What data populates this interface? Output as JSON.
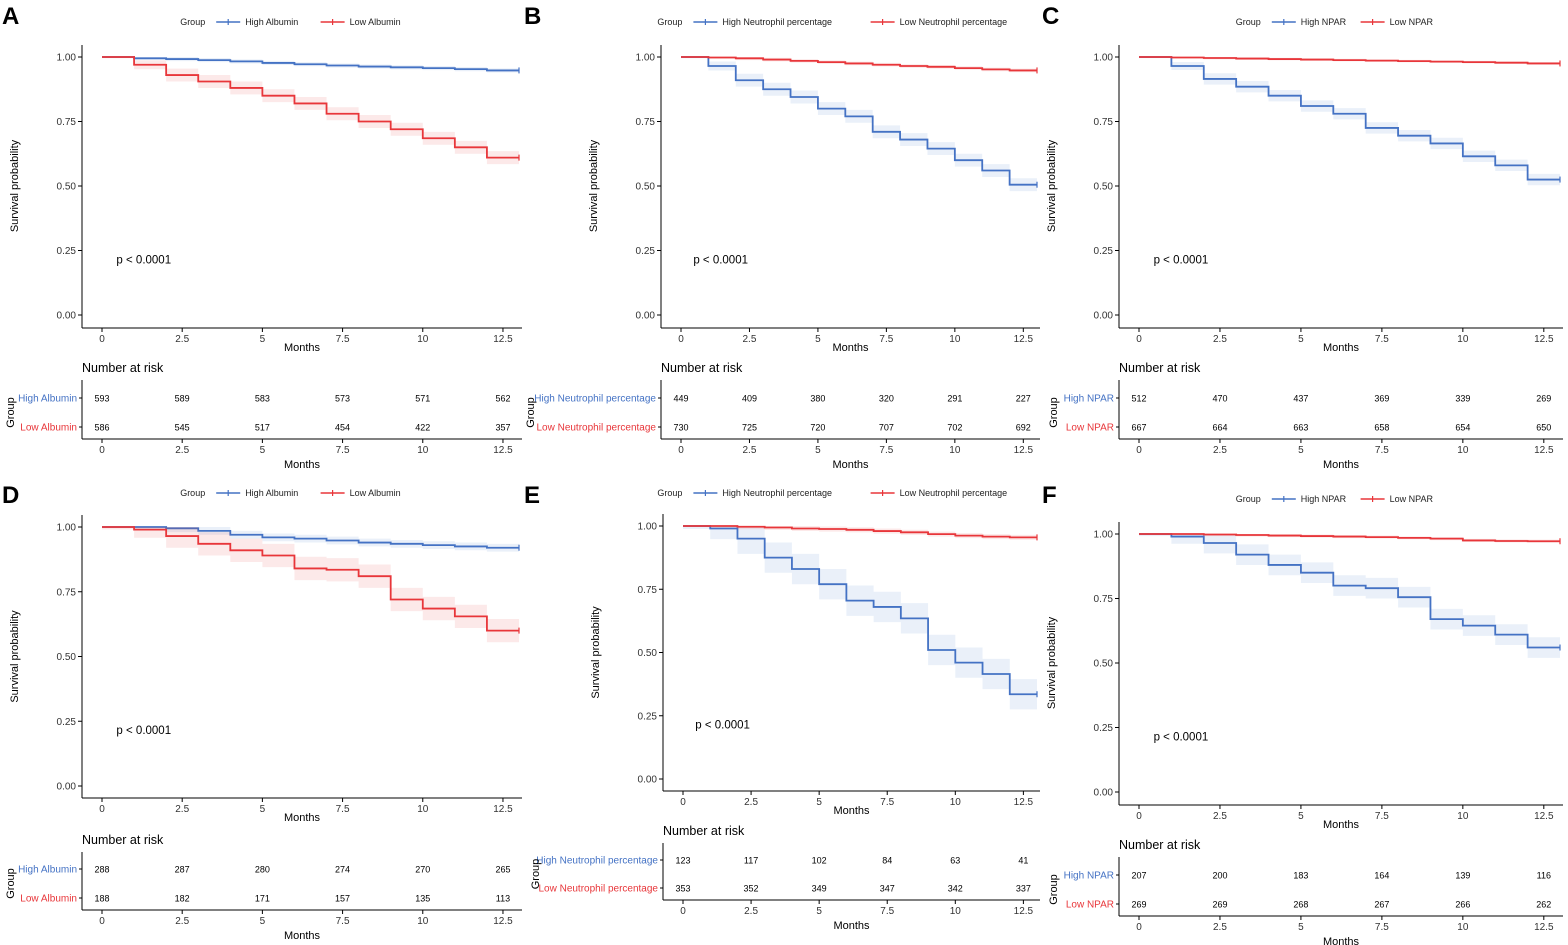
{
  "figure": {
    "colors": {
      "high": "#4472C4",
      "low": "#E8363A",
      "axis": "#000000",
      "text": "#333333"
    },
    "labels": {
      "ylabel": "Survival probability",
      "xlabel": "Months",
      "risk_title": "Number at risk",
      "group_label": "Group",
      "legend_title": "Group"
    }
  },
  "chart_data": [
    {
      "panel": "A",
      "type": "line",
      "step": true,
      "xlim": [
        0,
        13
      ],
      "ylim": [
        0,
        1
      ],
      "x_ticks": [
        0,
        2.5,
        5,
        7.5,
        10,
        12.5
      ],
      "x_tick_labels": [
        "0",
        "2.5",
        "5",
        "7.5",
        "10",
        "12.5"
      ],
      "y_ticks": [
        0,
        0.25,
        0.5,
        0.75,
        1
      ],
      "y_tick_labels": [
        "0.00",
        "0.25",
        "0.50",
        "0.75",
        "1.00"
      ],
      "p_value": "p < 0.0001",
      "series": [
        {
          "name": "High Albumin",
          "group": "high",
          "x": [
            0,
            1,
            2,
            3,
            4,
            5,
            6,
            7,
            8,
            9,
            10,
            11,
            12,
            13
          ],
          "y": [
            1.0,
            0.995,
            0.992,
            0.988,
            0.983,
            0.977,
            0.972,
            0.967,
            0.963,
            0.96,
            0.957,
            0.953,
            0.948,
            0.948
          ],
          "ci": 0.008,
          "risk": [
            "593",
            "589",
            "583",
            "573",
            "571",
            "562"
          ]
        },
        {
          "name": "Low Albumin",
          "group": "low",
          "x": [
            0,
            1,
            2,
            3,
            4,
            5,
            6,
            7,
            8,
            9,
            10,
            11,
            12,
            13
          ],
          "y": [
            1.0,
            0.97,
            0.93,
            0.905,
            0.88,
            0.85,
            0.82,
            0.78,
            0.75,
            0.72,
            0.685,
            0.65,
            0.61,
            0.61
          ],
          "ci": 0.025,
          "risk": [
            "586",
            "545",
            "517",
            "454",
            "422",
            "357"
          ]
        }
      ]
    },
    {
      "panel": "B",
      "type": "line",
      "step": true,
      "xlim": [
        0,
        13
      ],
      "ylim": [
        0,
        1
      ],
      "x_ticks": [
        0,
        2.5,
        5,
        7.5,
        10,
        12.5
      ],
      "x_tick_labels": [
        "0",
        "2.5",
        "5",
        "7.5",
        "10",
        "12.5"
      ],
      "y_ticks": [
        0,
        0.25,
        0.5,
        0.75,
        1
      ],
      "y_tick_labels": [
        "0.00",
        "0.25",
        "0.50",
        "0.75",
        "1.00"
      ],
      "p_value": "p < 0.0001",
      "series": [
        {
          "name": "High Neutrophil percentage",
          "group": "high",
          "x": [
            0,
            1,
            2,
            3,
            4,
            5,
            6,
            7,
            8,
            9,
            10,
            11,
            12,
            13
          ],
          "y": [
            1.0,
            0.965,
            0.91,
            0.875,
            0.845,
            0.8,
            0.77,
            0.71,
            0.68,
            0.645,
            0.6,
            0.56,
            0.505,
            0.505
          ],
          "ci": 0.025,
          "risk": [
            "449",
            "409",
            "380",
            "320",
            "291",
            "227"
          ]
        },
        {
          "name": "Low Neutrophil percentage",
          "group": "low",
          "x": [
            0,
            1,
            2,
            3,
            4,
            5,
            6,
            7,
            8,
            9,
            10,
            11,
            12,
            13
          ],
          "y": [
            1.0,
            0.998,
            0.995,
            0.99,
            0.985,
            0.98,
            0.975,
            0.97,
            0.965,
            0.962,
            0.957,
            0.952,
            0.948,
            0.948
          ],
          "ci": 0.007,
          "risk": [
            "730",
            "725",
            "720",
            "707",
            "702",
            "692"
          ]
        }
      ]
    },
    {
      "panel": "C",
      "type": "line",
      "step": true,
      "xlim": [
        0,
        13
      ],
      "ylim": [
        0,
        1
      ],
      "x_ticks": [
        0,
        2.5,
        5,
        7.5,
        10,
        12.5
      ],
      "x_tick_labels": [
        "0",
        "2.5",
        "5",
        "7.5",
        "10",
        "12.5"
      ],
      "y_ticks": [
        0,
        0.25,
        0.5,
        0.75,
        1
      ],
      "y_tick_labels": [
        "0.00",
        "0.25",
        "0.50",
        "0.75",
        "1.00"
      ],
      "p_value": "p < 0.0001",
      "series": [
        {
          "name": "High NPAR",
          "group": "high",
          "x": [
            0,
            1,
            2,
            3,
            4,
            5,
            6,
            7,
            8,
            9,
            10,
            11,
            12,
            13
          ],
          "y": [
            1.0,
            0.965,
            0.915,
            0.885,
            0.85,
            0.81,
            0.78,
            0.725,
            0.695,
            0.665,
            0.615,
            0.58,
            0.525,
            0.525
          ],
          "ci": 0.022,
          "risk": [
            "512",
            "470",
            "437",
            "369",
            "339",
            "269"
          ]
        },
        {
          "name": "Low NPAR",
          "group": "low",
          "x": [
            0,
            1,
            2,
            3,
            4,
            5,
            6,
            7,
            8,
            9,
            10,
            11,
            12,
            13
          ],
          "y": [
            1.0,
            0.998,
            0.996,
            0.994,
            0.992,
            0.99,
            0.988,
            0.986,
            0.984,
            0.982,
            0.98,
            0.978,
            0.975,
            0.975
          ],
          "ci": 0.005,
          "risk": [
            "667",
            "664",
            "663",
            "658",
            "654",
            "650"
          ]
        }
      ]
    },
    {
      "panel": "D",
      "type": "line",
      "step": true,
      "xlim": [
        0,
        13
      ],
      "ylim": [
        0,
        1
      ],
      "x_ticks": [
        0,
        2.5,
        5,
        7.5,
        10,
        12.5
      ],
      "x_tick_labels": [
        "0",
        "2.5",
        "5",
        "7.5",
        "10",
        "12.5"
      ],
      "y_ticks": [
        0,
        0.25,
        0.5,
        0.75,
        1
      ],
      "y_tick_labels": [
        "0.00",
        "0.25",
        "0.50",
        "0.75",
        "1.00"
      ],
      "p_value": "p < 0.0001",
      "series": [
        {
          "name": "High Albumin",
          "group": "high",
          "x": [
            0,
            1,
            2,
            3,
            4,
            5,
            6,
            7,
            8,
            9,
            10,
            11,
            12,
            13
          ],
          "y": [
            1.0,
            1.0,
            0.995,
            0.985,
            0.97,
            0.96,
            0.955,
            0.948,
            0.94,
            0.935,
            0.93,
            0.925,
            0.92,
            0.92
          ],
          "ci": 0.015,
          "risk": [
            "288",
            "287",
            "280",
            "274",
            "270",
            "265"
          ]
        },
        {
          "name": "Low Albumin",
          "group": "low",
          "x": [
            0,
            1,
            2,
            3,
            4,
            5,
            6,
            7,
            8,
            9,
            10,
            11,
            12,
            13
          ],
          "y": [
            1.0,
            0.99,
            0.965,
            0.935,
            0.91,
            0.89,
            0.84,
            0.835,
            0.81,
            0.72,
            0.685,
            0.655,
            0.6,
            0.6
          ],
          "ci": 0.045,
          "risk": [
            "188",
            "182",
            "171",
            "157",
            "135",
            "113"
          ]
        }
      ]
    },
    {
      "panel": "E",
      "type": "line",
      "step": true,
      "xlim": [
        0,
        13
      ],
      "ylim": [
        0,
        1
      ],
      "x_ticks": [
        0,
        2.5,
        5,
        7.5,
        10,
        12.5
      ],
      "x_tick_labels": [
        "0",
        "2.5",
        "5",
        "7.5",
        "10",
        "12.5"
      ],
      "y_ticks": [
        0,
        0.25,
        0.5,
        0.75,
        1
      ],
      "y_tick_labels": [
        "0.00",
        "0.25",
        "0.50",
        "0.75",
        "1.00"
      ],
      "p_value": "p < 0.0001",
      "series": [
        {
          "name": "High Neutrophil percentage",
          "group": "high",
          "x": [
            0,
            1,
            2,
            3,
            4,
            5,
            6,
            7,
            8,
            9,
            10,
            11,
            12,
            13
          ],
          "y": [
            1.0,
            0.99,
            0.95,
            0.875,
            0.83,
            0.77,
            0.705,
            0.68,
            0.635,
            0.51,
            0.46,
            0.415,
            0.335,
            0.335
          ],
          "ci": 0.06,
          "risk": [
            "123",
            "117",
            "102",
            "84",
            "63",
            "41"
          ]
        },
        {
          "name": "Low Neutrophil percentage",
          "group": "low",
          "x": [
            0,
            1,
            2,
            3,
            4,
            5,
            6,
            7,
            8,
            9,
            10,
            11,
            12,
            13
          ],
          "y": [
            1.0,
            1.0,
            0.997,
            0.994,
            0.99,
            0.988,
            0.985,
            0.98,
            0.975,
            0.968,
            0.962,
            0.958,
            0.955,
            0.955
          ],
          "ci": 0.01,
          "risk": [
            "353",
            "352",
            "349",
            "347",
            "342",
            "337"
          ]
        }
      ]
    },
    {
      "panel": "F",
      "type": "line",
      "step": true,
      "xlim": [
        0,
        13
      ],
      "ylim": [
        0,
        1
      ],
      "x_ticks": [
        0,
        2.5,
        5,
        7.5,
        10,
        12.5
      ],
      "x_tick_labels": [
        "0",
        "2.5",
        "5",
        "7.5",
        "10",
        "12.5"
      ],
      "y_ticks": [
        0,
        0.25,
        0.5,
        0.75,
        1
      ],
      "y_tick_labels": [
        "0.00",
        "0.25",
        "0.50",
        "0.75",
        "1.00"
      ],
      "p_value": "p < 0.0001",
      "series": [
        {
          "name": "High NPAR",
          "group": "high",
          "x": [
            0,
            1,
            2,
            3,
            4,
            5,
            6,
            7,
            8,
            9,
            10,
            11,
            12,
            13
          ],
          "y": [
            1.0,
            0.99,
            0.965,
            0.92,
            0.88,
            0.85,
            0.8,
            0.79,
            0.755,
            0.67,
            0.645,
            0.61,
            0.56,
            0.56
          ],
          "ci": 0.04,
          "risk": [
            "207",
            "200",
            "183",
            "164",
            "139",
            "116"
          ]
        },
        {
          "name": "Low NPAR",
          "group": "low",
          "x": [
            0,
            1,
            2,
            3,
            4,
            5,
            6,
            7,
            8,
            9,
            10,
            11,
            12,
            13
          ],
          "y": [
            1.0,
            1.0,
            0.998,
            0.996,
            0.994,
            0.992,
            0.99,
            0.988,
            0.985,
            0.982,
            0.975,
            0.973,
            0.972,
            0.972
          ],
          "ci": 0.006,
          "risk": [
            "269",
            "269",
            "268",
            "267",
            "266",
            "262"
          ]
        }
      ]
    }
  ]
}
